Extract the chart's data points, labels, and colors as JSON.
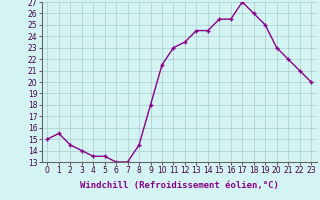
{
  "hours": [
    0,
    1,
    2,
    3,
    4,
    5,
    6,
    7,
    8,
    9,
    10,
    11,
    12,
    13,
    14,
    15,
    16,
    17,
    18,
    19,
    20,
    21,
    22,
    23
  ],
  "values": [
    15,
    15.5,
    14.5,
    14,
    13.5,
    13.5,
    13,
    13,
    14.5,
    18,
    21.5,
    23,
    23.5,
    24.5,
    24.5,
    25.5,
    25.5,
    27,
    26,
    25,
    23,
    22,
    21,
    20
  ],
  "line_color": "#880088",
  "marker": "+",
  "bg_color": "#d4f4f4",
  "grid_color": "#aacccc",
  "xlabel": "Windchill (Refroidissement éolien,°C)",
  "ylim": [
    13,
    27
  ],
  "xlim": [
    -0.5,
    23.5
  ],
  "yticks": [
    13,
    14,
    15,
    16,
    17,
    18,
    19,
    20,
    21,
    22,
    23,
    24,
    25,
    26,
    27
  ],
  "xticks": [
    0,
    1,
    2,
    3,
    4,
    5,
    6,
    7,
    8,
    9,
    10,
    11,
    12,
    13,
    14,
    15,
    16,
    17,
    18,
    19,
    20,
    21,
    22,
    23
  ],
  "tick_fontsize": 5.5,
  "xlabel_fontsize": 6.5,
  "marker_size": 3,
  "linewidth": 1.0
}
